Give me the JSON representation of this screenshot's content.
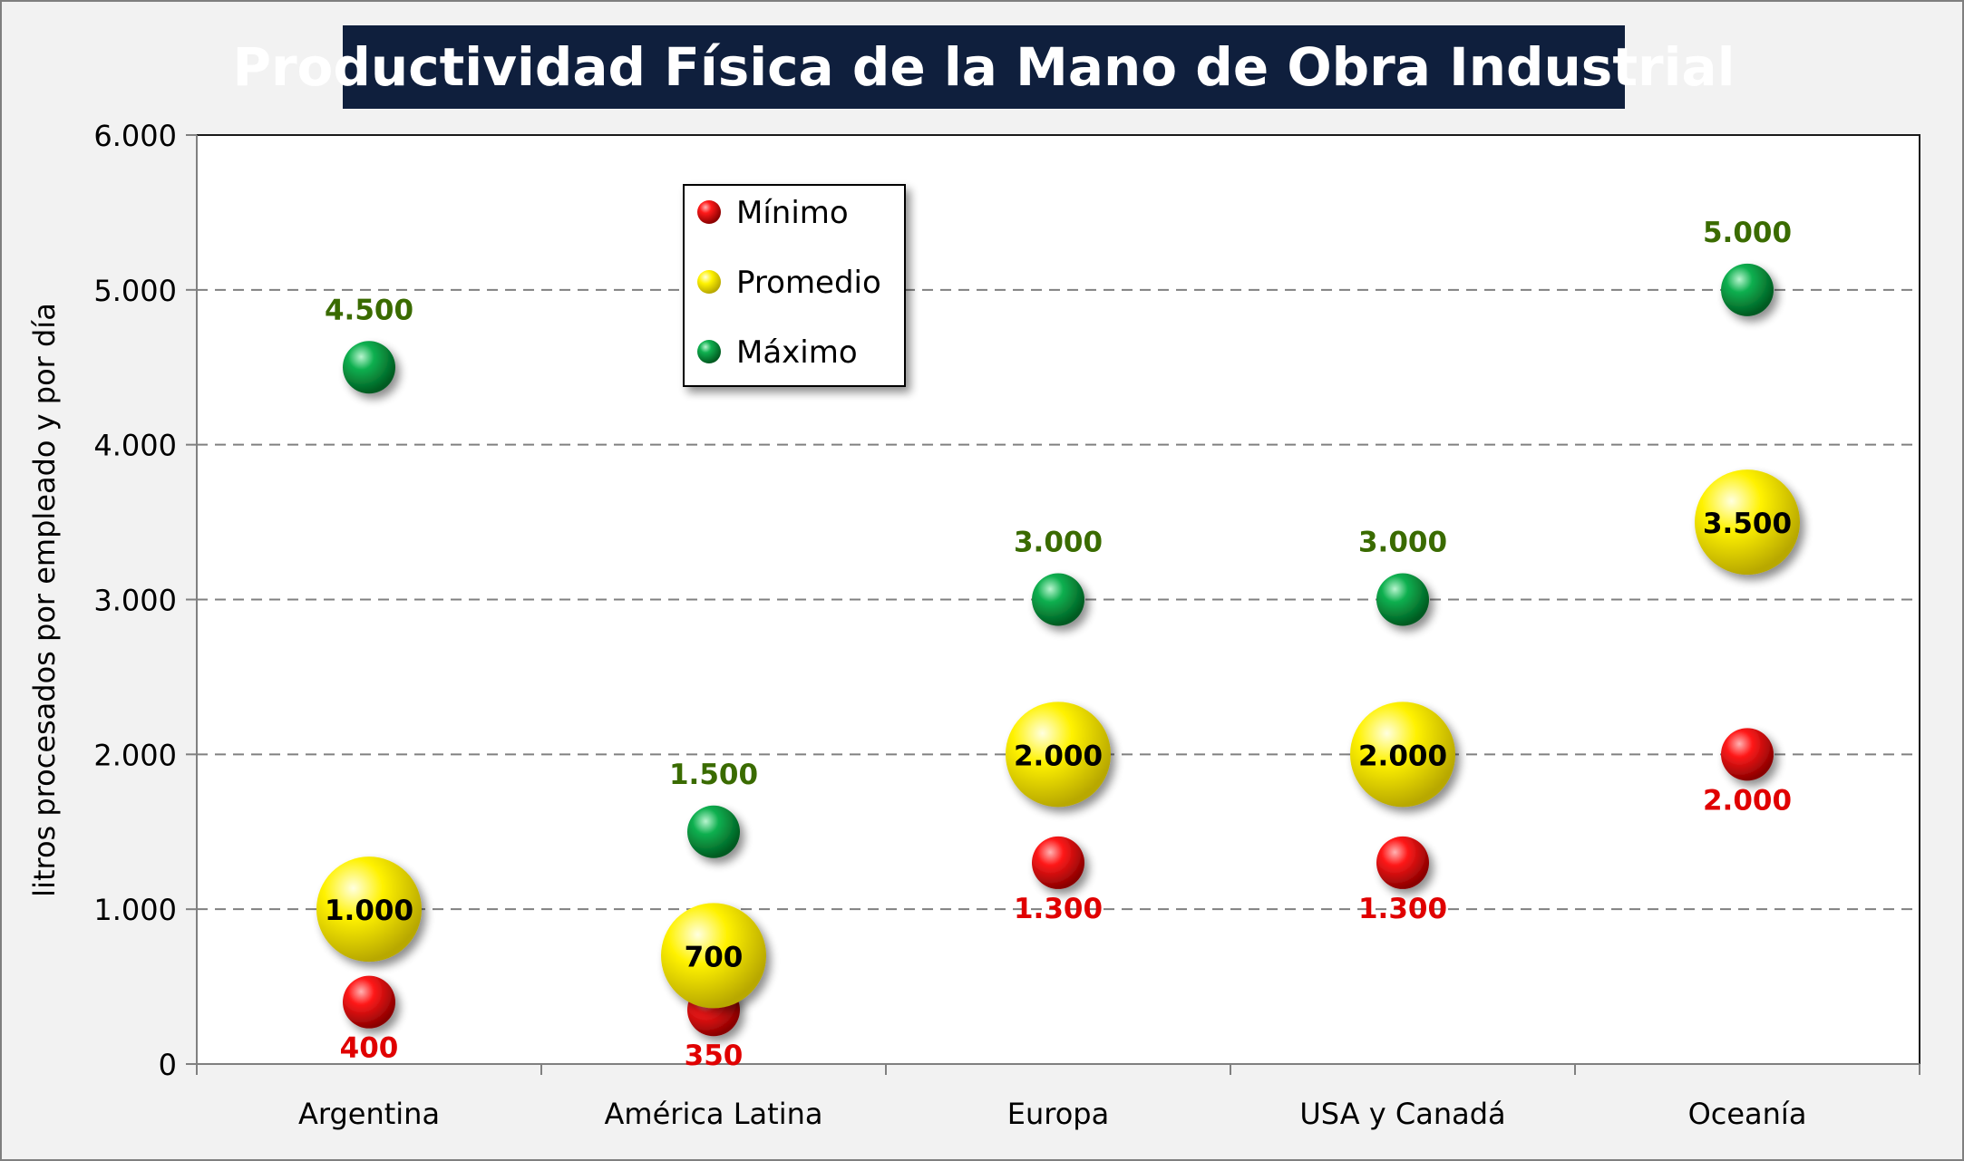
{
  "chart_data": {
    "type": "scatter",
    "title": "Productividad Física de la Mano de Obra Industrial",
    "xlabel": "",
    "ylabel": "litros procesados por empleado y por día",
    "categories": [
      "Argentina",
      "América Latina",
      "Europa",
      "USA y Canadá",
      "Oceanía"
    ],
    "ylim": [
      0,
      6000
    ],
    "yticks": [
      0,
      1000,
      2000,
      3000,
      4000,
      5000,
      6000
    ],
    "ytick_labels": [
      "0",
      "1.000",
      "2.000",
      "3.000",
      "4.000",
      "5.000",
      "6.000"
    ],
    "grid": true,
    "legend_position": "top-left",
    "series": [
      {
        "name": "Mínimo",
        "color": "#e00000",
        "label_color": "#e00000",
        "label_side": "below",
        "radius_scale": 1.0,
        "values": [
          400,
          350,
          1300,
          1300,
          2000
        ],
        "labels": [
          "400",
          "350",
          "1.300",
          "1.300",
          "2.000"
        ]
      },
      {
        "name": "Promedio",
        "color": "#f5f000",
        "label_color": "#000000",
        "label_side": "center",
        "radius_scale": 2.0,
        "values": [
          1000,
          700,
          2000,
          2000,
          3500
        ],
        "labels": [
          "1.000",
          "700",
          "2.000",
          "2.000",
          "3.500"
        ]
      },
      {
        "name": "Máximo",
        "color": "#00a040",
        "label_color": "#3a6b00",
        "label_side": "above",
        "radius_scale": 1.0,
        "values": [
          4500,
          1500,
          3000,
          3000,
          5000
        ],
        "labels": [
          "4.500",
          "1.500",
          "3.000",
          "3.000",
          "5.000"
        ]
      }
    ]
  }
}
